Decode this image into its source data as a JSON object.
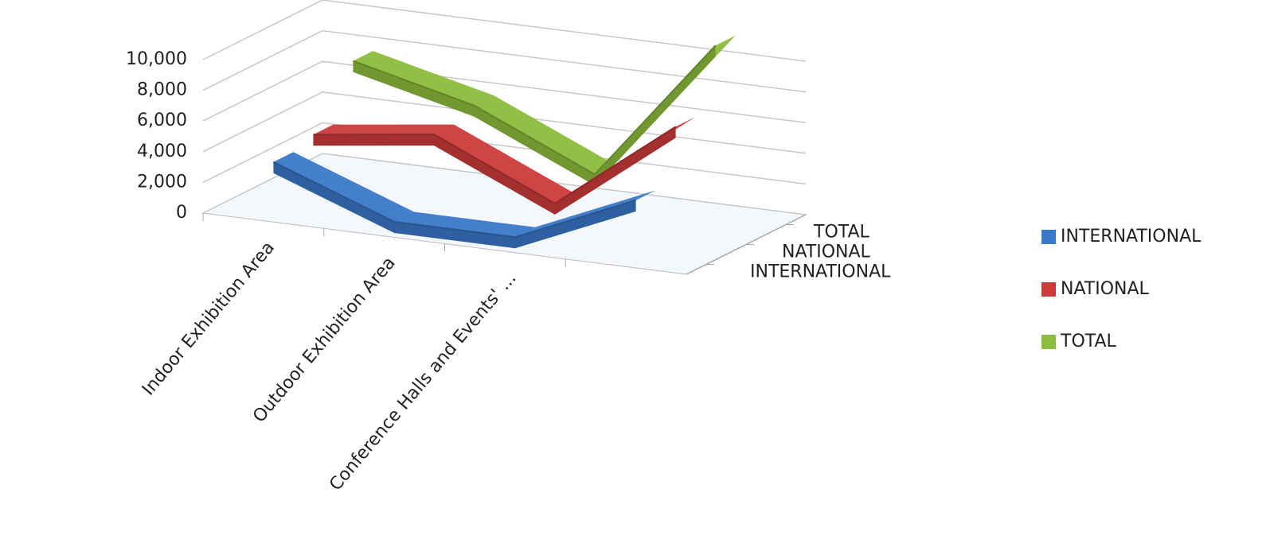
{
  "chart_data": {
    "type": "line3d",
    "categories": [
      "Indoor Exhibition Area",
      "Outdoor Exhibition Area",
      "Conference Halls and Events' ...",
      null
    ],
    "series": [
      {
        "name": "INTERNATIONAL",
        "color": "#3a78c9",
        "values": [
          3500,
          600,
          600,
          4000
        ]
      },
      {
        "name": "NATIONAL",
        "color": "#cc3b3b",
        "values": [
          4000,
          5000,
          1500,
          7500
        ]
      },
      {
        "name": "TOTAL",
        "color": "#8cbd3c",
        "values": [
          7500,
          5600,
          2100,
          11500
        ]
      }
    ],
    "ylim": [
      0,
      10000
    ],
    "yticks": [
      {
        "value": 0,
        "label": "0"
      },
      {
        "value": 2000,
        "label": "2,000"
      },
      {
        "value": 4000,
        "label": "4,000"
      },
      {
        "value": 6000,
        "label": "6,000"
      },
      {
        "value": 8000,
        "label": "8,000"
      },
      {
        "value": 10000,
        "label": "10,000"
      }
    ],
    "grid": true,
    "legend": "right"
  }
}
